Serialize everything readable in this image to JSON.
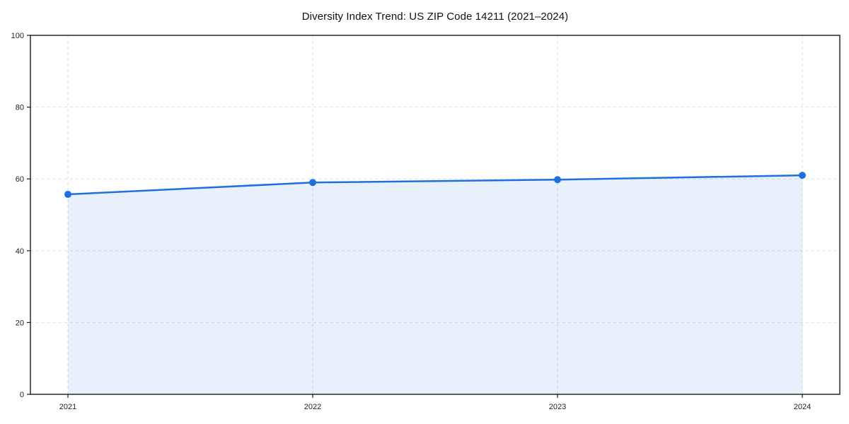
{
  "chart_data": {
    "type": "line",
    "title": "Diversity Index Trend: US ZIP Code 14211 (2021–2024)",
    "x": [
      2021,
      2022,
      2023,
      2024
    ],
    "xticks": [
      "2021",
      "2022",
      "2023",
      "2024"
    ],
    "series": [
      {
        "name": "Diversity Index",
        "values": [
          55.7,
          59.0,
          59.8,
          61.0
        ]
      }
    ],
    "xlabel": "",
    "ylabel": "",
    "ylim": [
      0,
      100
    ],
    "yticks": [
      0,
      20,
      40,
      60,
      80,
      100
    ],
    "grid": true,
    "grid_style": "dashed",
    "legend_position": "none",
    "area_fill": true,
    "colors": {
      "line": "#1f6fe0",
      "marker": "#1f6fe0",
      "area": "rgba(31,111,224,0.10)",
      "grid": "#dcdcdc",
      "spine": "#1a1a1a",
      "tick_text": "#222222",
      "title_text": "#111111",
      "background": "#ffffff"
    }
  }
}
